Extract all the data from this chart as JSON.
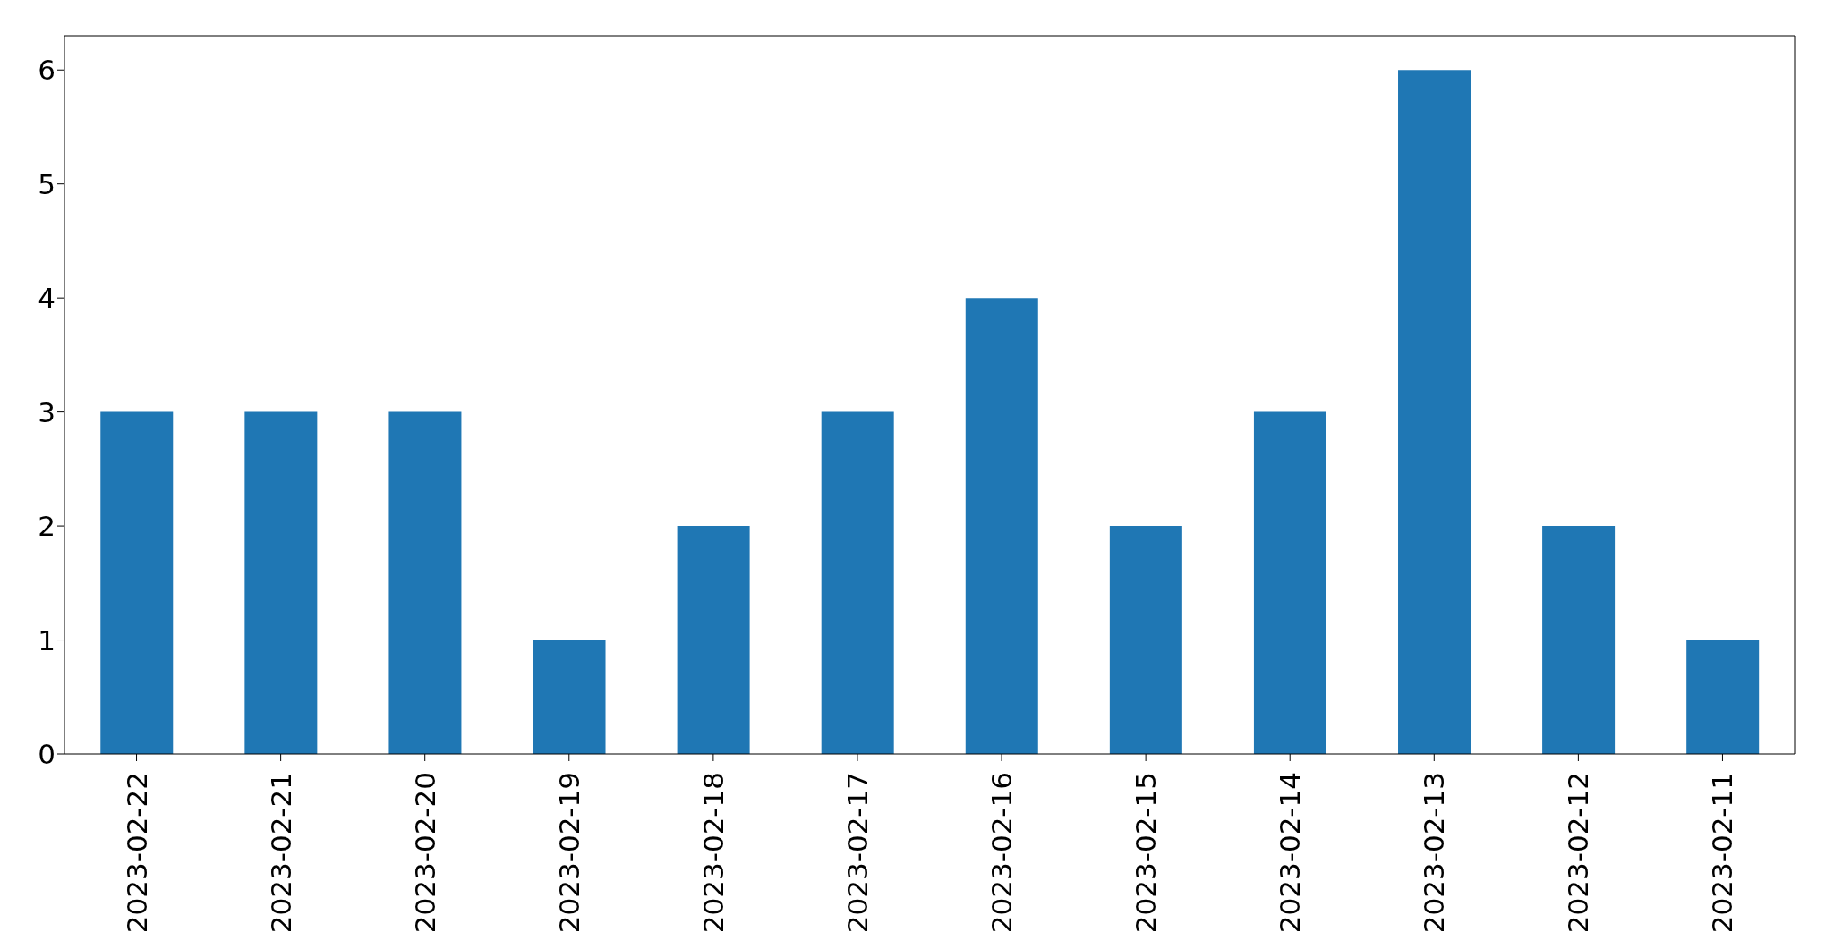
{
  "chart_data": {
    "type": "bar",
    "categories": [
      "2023-02-22",
      "2023-02-21",
      "2023-02-20",
      "2023-02-19",
      "2023-02-18",
      "2023-02-17",
      "2023-02-16",
      "2023-02-15",
      "2023-02-14",
      "2023-02-13",
      "2023-02-12",
      "2023-02-11"
    ],
    "values": [
      3,
      3,
      3,
      1,
      2,
      3,
      4,
      2,
      3,
      6,
      2,
      1
    ],
    "color": "#1f77b4",
    "ylim": [
      0,
      6.3
    ],
    "yticks": [
      0,
      1,
      2,
      3,
      4,
      5,
      6
    ],
    "grid": false,
    "legend": false
  }
}
